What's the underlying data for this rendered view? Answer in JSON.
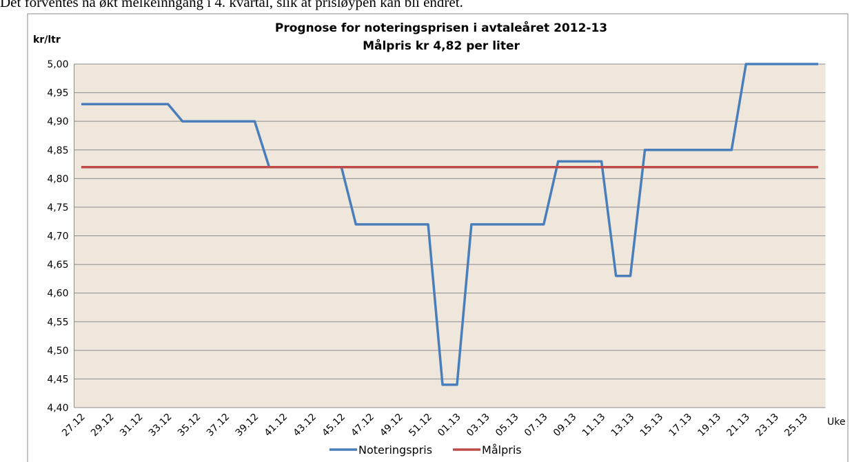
{
  "document_text": "Det forventes nå økt melkeinngang i 4. kvartal, slik at prisløypen kan bli endret.",
  "chart_data": {
    "type": "line",
    "title": "Prognose for noteringsprisen i  avtaleåret 2012-13",
    "subtitle": "Målpris kr 4,82 per liter",
    "y_label": "kr/ltr",
    "x_label": "Uke",
    "categories": [
      "27.12",
      null,
      "29.12",
      null,
      "31.12",
      null,
      "33.12",
      null,
      "35.12",
      null,
      "37.12",
      null,
      "39.12",
      null,
      "41.12",
      null,
      "43.12",
      null,
      "45.12",
      null,
      "47.12",
      null,
      "49.12",
      null,
      "51.12",
      null,
      "01.13",
      null,
      "03.13",
      null,
      "05.13",
      null,
      "07.13",
      null,
      "09.13",
      null,
      "11.13",
      null,
      "13.13",
      null,
      "15.13",
      null,
      "17.13",
      null,
      "19.13",
      null,
      "21.13",
      null,
      "23.13",
      null,
      "25.13",
      null
    ],
    "series": [
      {
        "name": "Noteringspris",
        "color": "#4a7ebb",
        "values": [
          4.93,
          4.93,
          4.93,
          4.93,
          4.93,
          4.93,
          4.93,
          4.9,
          4.9,
          4.9,
          4.9,
          4.9,
          4.9,
          4.82,
          4.82,
          4.82,
          4.82,
          4.82,
          4.82,
          4.72,
          4.72,
          4.72,
          4.72,
          4.72,
          4.72,
          4.44,
          4.44,
          4.72,
          4.72,
          4.72,
          4.72,
          4.72,
          4.72,
          4.83,
          4.83,
          4.83,
          4.83,
          4.63,
          4.63,
          4.85,
          4.85,
          4.85,
          4.85,
          4.85,
          4.85,
          4.85,
          5.0,
          5.0,
          5.0,
          5.0,
          5.0,
          5.0
        ]
      },
      {
        "name": "Målpris",
        "color": "#be4b48",
        "values": [
          4.82,
          4.82,
          4.82,
          4.82,
          4.82,
          4.82,
          4.82,
          4.82,
          4.82,
          4.82,
          4.82,
          4.82,
          4.82,
          4.82,
          4.82,
          4.82,
          4.82,
          4.82,
          4.82,
          4.82,
          4.82,
          4.82,
          4.82,
          4.82,
          4.82,
          4.82,
          4.82,
          4.82,
          4.82,
          4.82,
          4.82,
          4.82,
          4.82,
          4.82,
          4.82,
          4.82,
          4.82,
          4.82,
          4.82,
          4.82,
          4.82,
          4.82,
          4.82,
          4.82,
          4.82,
          4.82,
          4.82,
          4.82,
          4.82,
          4.82,
          4.82,
          4.82
        ]
      }
    ],
    "ylim": [
      4.4,
      5.0
    ],
    "yticks": [
      {
        "value": 4.4,
        "label": "4,40"
      },
      {
        "value": 4.45,
        "label": "4,45"
      },
      {
        "value": 4.5,
        "label": "4,50"
      },
      {
        "value": 4.55,
        "label": "4,55"
      },
      {
        "value": 4.6,
        "label": "4,60"
      },
      {
        "value": 4.65,
        "label": "4,65"
      },
      {
        "value": 4.7,
        "label": "4,70"
      },
      {
        "value": 4.75,
        "label": "4,75"
      },
      {
        "value": 4.8,
        "label": "4,80"
      },
      {
        "value": 4.85,
        "label": "4,85"
      },
      {
        "value": 4.9,
        "label": "4,90"
      },
      {
        "value": 4.95,
        "label": "4,95"
      },
      {
        "value": 5.0,
        "label": "5,00"
      }
    ],
    "grid": true,
    "plot_background": "#efe6dc",
    "legend": "bottom"
  }
}
